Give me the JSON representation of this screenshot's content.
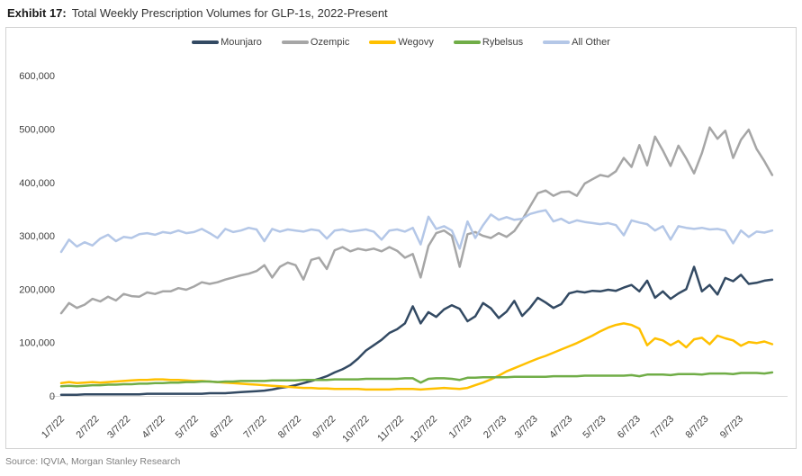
{
  "header": {
    "exhibit_label": "Exhibit 17:",
    "title": "Total Weekly Prescription Volumes for GLP-1s, 2022-Present"
  },
  "footer": {
    "source": "Source: IQVIA, Morgan Stanley Research"
  },
  "axis_colors": {
    "axis_line": "#d9d9d9",
    "tick_text": "#404040"
  },
  "chart_data": {
    "type": "line",
    "title": "Total Weekly Prescription Volumes for GLP-1s, 2022-Present",
    "x_unit": "weekly data points, weeks since 1/7/22",
    "values_unit": "prescriptions (thousands)",
    "grid": false,
    "legend_position": "top-center",
    "ylim": [
      0,
      600000
    ],
    "y_tick_labels": [
      "0",
      "100,000",
      "200,000",
      "300,000",
      "400,000",
      "500,000",
      "600,000"
    ],
    "x_tick_labels": [
      "1/7/22",
      "2/7/22",
      "3/7/22",
      "4/7/22",
      "5/7/22",
      "6/7/22",
      "7/7/22",
      "8/7/22",
      "9/7/22",
      "10/7/22",
      "11/7/22",
      "12/7/22",
      "1/7/23",
      "2/7/23",
      "3/7/23",
      "4/7/23",
      "5/7/23",
      "6/7/23",
      "7/7/23",
      "8/7/23",
      "9/7/23"
    ],
    "x_tick_weeks": [
      0,
      4.43,
      8.43,
      12.86,
      17.14,
      21.57,
      25.86,
      30.29,
      34.71,
      39,
      43.43,
      47.71,
      52.14,
      56.57,
      60.57,
      65,
      69.29,
      73.71,
      78,
      82.43,
      86.86
    ],
    "series": [
      {
        "name": "Mounjaro",
        "color": "#334a63",
        "values_thousands": [
          2,
          2,
          2,
          3,
          3,
          3,
          3,
          3,
          3,
          3,
          3,
          4,
          4,
          4,
          4,
          4,
          4,
          4,
          4,
          5,
          5,
          5,
          6,
          7,
          8,
          9,
          10,
          12,
          15,
          17,
          20,
          24,
          28,
          32,
          37,
          44,
          50,
          58,
          70,
          85,
          95,
          105,
          118,
          125,
          136,
          168,
          136,
          157,
          148,
          162,
          170,
          163,
          140,
          149,
          174,
          164,
          146,
          158,
          178,
          150,
          165,
          184,
          175,
          165,
          172,
          192,
          196,
          194,
          197,
          196,
          199,
          197,
          203,
          208,
          196,
          216,
          184,
          196,
          182,
          192,
          200,
          242,
          196,
          208,
          190,
          221,
          215,
          227,
          210,
          212,
          216,
          218
        ]
      },
      {
        "name": "Ozempic",
        "color": "#a6a6a6",
        "values_thousands": [
          155,
          174,
          165,
          171,
          182,
          177,
          186,
          179,
          191,
          187,
          186,
          194,
          191,
          196,
          196,
          202,
          199,
          205,
          213,
          210,
          213,
          218,
          222,
          226,
          229,
          234,
          245,
          222,
          242,
          250,
          245,
          218,
          255,
          259,
          238,
          273,
          279,
          271,
          276,
          273,
          276,
          271,
          279,
          272,
          259,
          266,
          222,
          281,
          305,
          310,
          300,
          242,
          303,
          307,
          300,
          296,
          305,
          298,
          309,
          330,
          355,
          380,
          385,
          375,
          382,
          383,
          375,
          398,
          406,
          414,
          411,
          421,
          446,
          429,
          470,
          432,
          486,
          460,
          431,
          469,
          445,
          417,
          455,
          503,
          482,
          497,
          446,
          480,
          499,
          463,
          440,
          414
        ]
      },
      {
        "name": "Wegovy",
        "color": "#ffc000",
        "values_thousands": [
          24,
          26,
          24,
          25,
          26,
          25,
          26,
          27,
          28,
          29,
          30,
          30,
          31,
          31,
          30,
          30,
          29,
          28,
          28,
          27,
          26,
          25,
          24,
          23,
          22,
          21,
          20,
          19,
          18,
          17,
          16,
          15,
          15,
          14,
          14,
          13,
          13,
          13,
          13,
          12,
          12,
          12,
          12,
          13,
          13,
          13,
          12,
          13,
          14,
          15,
          14,
          13,
          15,
          20,
          25,
          31,
          38,
          46,
          52,
          58,
          64,
          70,
          75,
          81,
          87,
          93,
          99,
          106,
          113,
          121,
          128,
          133,
          136,
          133,
          126,
          95,
          108,
          104,
          95,
          103,
          91,
          106,
          109,
          97,
          113,
          108,
          104,
          94,
          101,
          99,
          102,
          97
        ]
      },
      {
        "name": "Rybelsus",
        "color": "#70ad47",
        "values_thousands": [
          18,
          19,
          18,
          19,
          20,
          20,
          21,
          21,
          22,
          22,
          23,
          23,
          24,
          24,
          25,
          25,
          26,
          26,
          27,
          27,
          26,
          27,
          27,
          28,
          28,
          28,
          28,
          29,
          29,
          29,
          29,
          30,
          30,
          30,
          30,
          31,
          31,
          31,
          31,
          32,
          32,
          32,
          32,
          32,
          33,
          33,
          25,
          32,
          33,
          33,
          32,
          30,
          34,
          34,
          35,
          35,
          35,
          35,
          36,
          36,
          36,
          36,
          36,
          37,
          37,
          37,
          37,
          38,
          38,
          38,
          38,
          38,
          38,
          39,
          37,
          40,
          40,
          40,
          39,
          41,
          41,
          41,
          40,
          42,
          42,
          42,
          41,
          43,
          43,
          43,
          42,
          44
        ]
      },
      {
        "name": "All Other",
        "color": "#b4c7e7",
        "values_thousands": [
          270,
          293,
          280,
          288,
          282,
          295,
          302,
          290,
          298,
          296,
          303,
          305,
          302,
          307,
          305,
          310,
          305,
          307,
          313,
          305,
          296,
          313,
          307,
          310,
          315,
          312,
          290,
          313,
          308,
          312,
          310,
          308,
          312,
          310,
          295,
          310,
          312,
          308,
          310,
          312,
          308,
          293,
          310,
          312,
          308,
          315,
          284,
          336,
          313,
          318,
          310,
          276,
          327,
          296,
          320,
          340,
          330,
          335,
          330,
          332,
          341,
          345,
          348,
          327,
          332,
          324,
          329,
          326,
          324,
          322,
          324,
          320,
          301,
          329,
          325,
          322,
          310,
          318,
          293,
          318,
          315,
          313,
          315,
          312,
          313,
          310,
          286,
          310,
          298,
          308,
          306,
          310
        ]
      }
    ]
  }
}
